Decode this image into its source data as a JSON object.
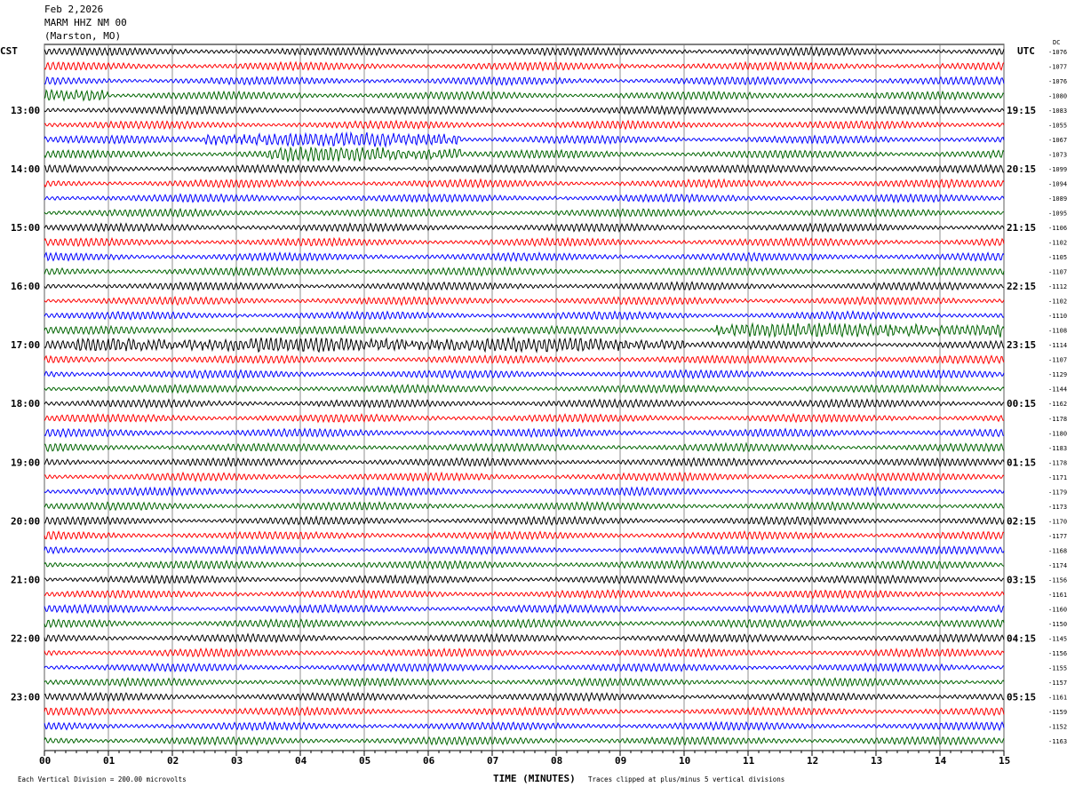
{
  "header": {
    "date": "Feb 2,2026",
    "station": "MARM HHZ NM 00",
    "location": "(Marston, MO)"
  },
  "footer": {
    "scale_note": "Each Vertical Division =  200.00 microvolts",
    "clip_note": "Traces clipped at plus/minus 5 vertical divisions"
  },
  "chart_data": {
    "type": "line",
    "title": "",
    "xlabel": "TIME (MINUTES)",
    "xlim": [
      0,
      15
    ],
    "x_ticks": [
      "00",
      "01",
      "02",
      "03",
      "04",
      "05",
      "06",
      "07",
      "08",
      "09",
      "10",
      "11",
      "12",
      "13",
      "14",
      "15"
    ],
    "left_axis_title": "CST",
    "right_axis_title": "UTC",
    "dc_header": "DC",
    "left_hour_labels": [
      "13:00",
      "14:00",
      "15:00",
      "16:00",
      "17:00",
      "18:00",
      "19:00",
      "20:00",
      "21:00",
      "22:00",
      "23:00"
    ],
    "right_hour_labels": [
      "19:15",
      "20:15",
      "21:15",
      "22:15",
      "23:15",
      "00:15",
      "01:15",
      "02:15",
      "03:15",
      "04:15",
      "05:15"
    ],
    "trace_colors": [
      "#000000",
      "#ff0000",
      "#0000ff",
      "#006400"
    ],
    "dc_offsets": [
      "-1076",
      "-1077",
      "-1076",
      "-1080",
      "-1083",
      "-1055",
      "-1067",
      "-1073",
      "-1099",
      "-1094",
      "-1089",
      "-1095",
      "-1106",
      "-1102",
      "-1105",
      "-1107",
      "-1112",
      "-1102",
      "-1110",
      "-1108",
      "-1114",
      "-1107",
      "-1129",
      "-1144",
      "-1162",
      "-1178",
      "-1180",
      "-1183",
      "-1178",
      "-1171",
      "-1179",
      "-1173",
      "-1170",
      "-1177",
      "-1168",
      "-1174",
      "-1156",
      "-1161",
      "-1160",
      "-1150",
      "-1145",
      "-1156",
      "-1155",
      "-1157",
      "-1161",
      "-1159",
      "-1152",
      "-1163"
    ],
    "high_amplitude_segments": [
      {
        "trace": 3,
        "from_min": 0,
        "to_min": 1
      },
      {
        "trace": 6,
        "from_min": 2.5,
        "to_min": 6.5
      },
      {
        "trace": 7,
        "from_min": 3.5,
        "to_min": 6.5
      },
      {
        "trace": 19,
        "from_min": 10.5,
        "to_min": 15
      },
      {
        "trace": 20,
        "from_min": 0.5,
        "to_min": 10
      }
    ]
  }
}
